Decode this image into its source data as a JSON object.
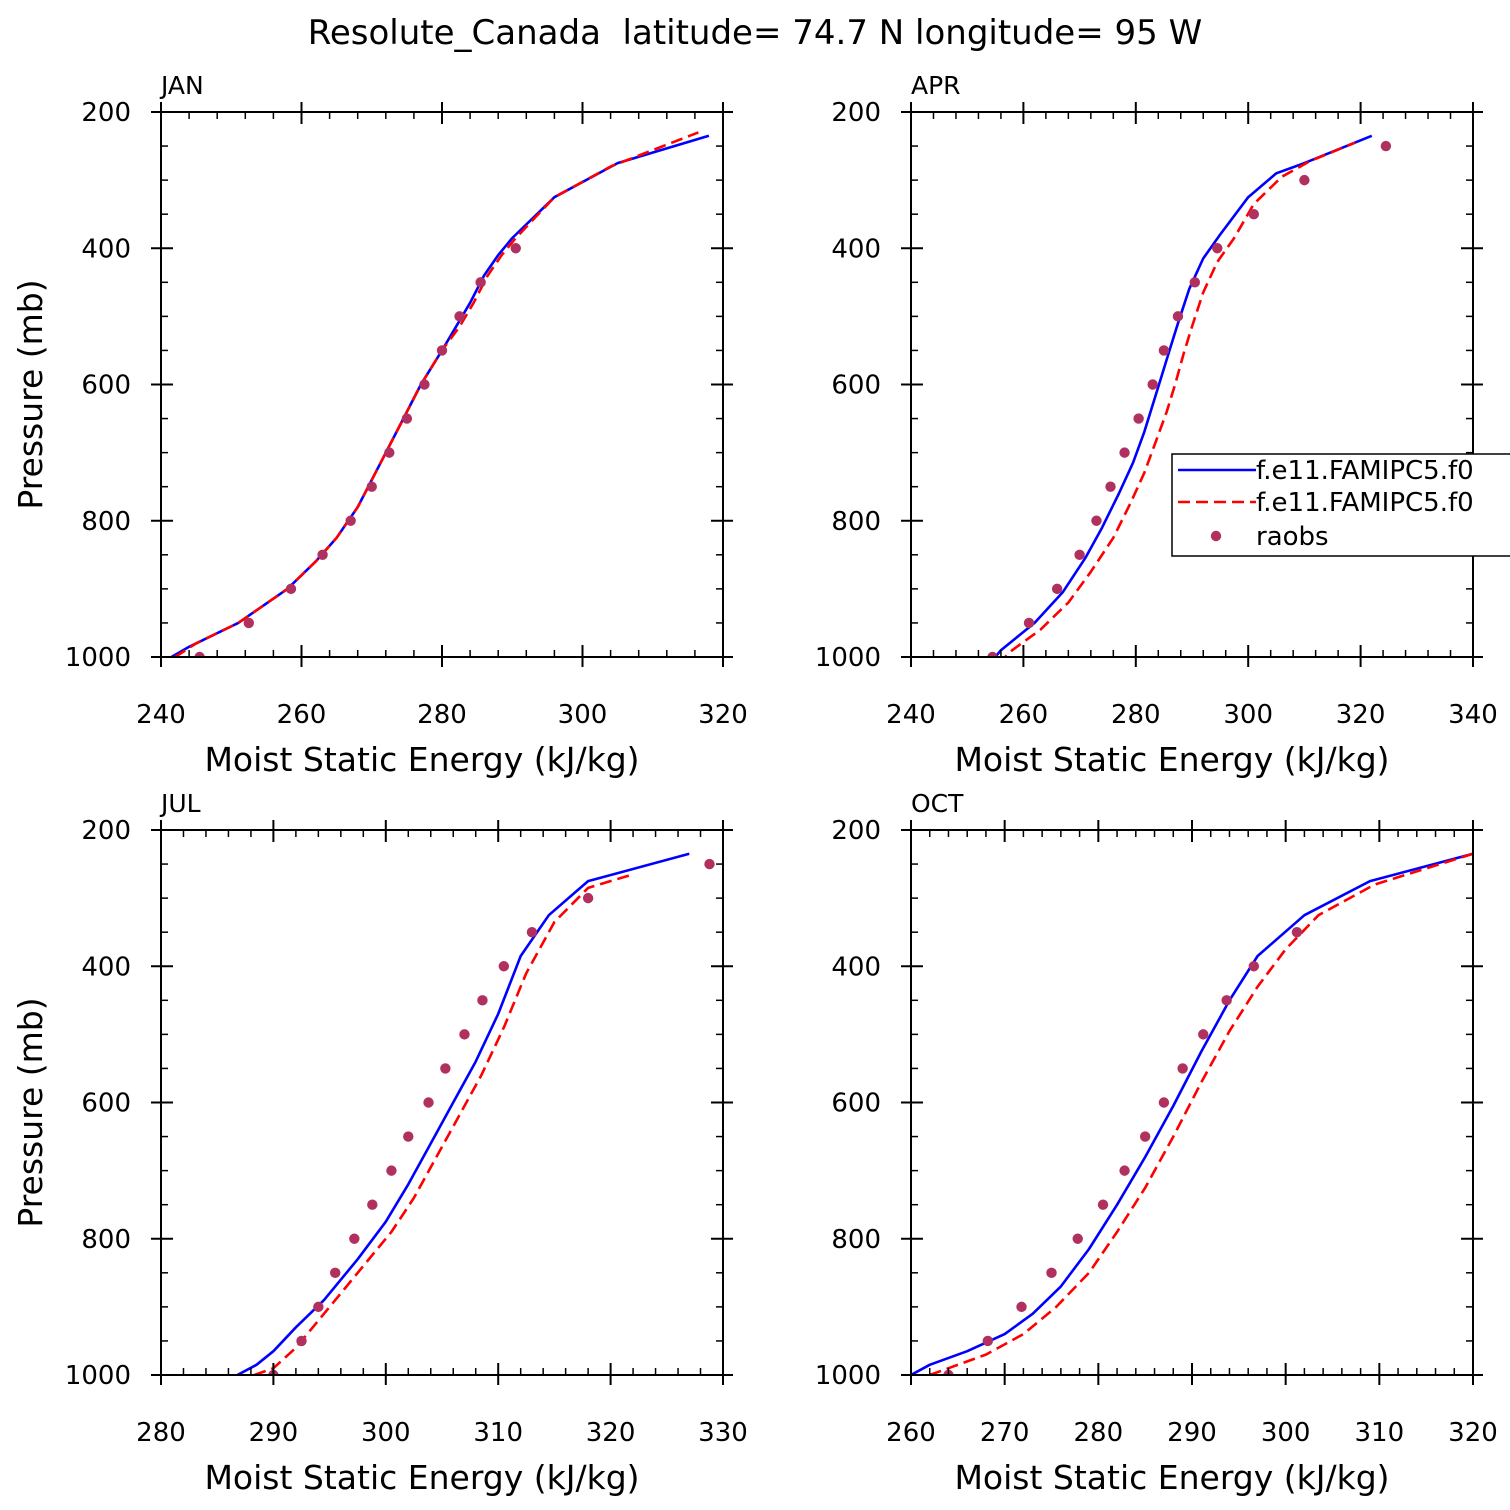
{
  "title": "Resolute_Canada  latitude= 74.7 N longitude= 95 W",
  "colors": {
    "model1": "#0000ff",
    "model2": "#ff0000",
    "obs": "#b03060"
  },
  "legend": {
    "entries": [
      "f.e11.FAMIPC5.f0",
      "f.e11.FAMIPC5.f0",
      "raobs"
    ]
  },
  "chart_data": [
    {
      "type": "line",
      "panel": "JAN",
      "title": "JAN",
      "xlabel": "Moist Static Energy (kJ/kg)",
      "ylabel": "Pressure (mb)",
      "xlim": [
        240,
        320
      ],
      "ylim": [
        200,
        1000
      ],
      "xticks": [
        "240",
        "260",
        "280",
        "300",
        "320"
      ],
      "yticks": [
        "200",
        "400",
        "600",
        "800",
        "1000"
      ],
      "series": [
        {
          "name": "f.e11.FAMIPC5.f0",
          "style": "solid",
          "points": [
            [
              241.5,
              1000
            ],
            [
              244,
              985
            ],
            [
              251,
              950
            ],
            [
              258,
              900
            ],
            [
              262,
              860
            ],
            [
              265,
              825
            ],
            [
              268,
              780
            ],
            [
              271,
              720
            ],
            [
              274,
              660
            ],
            [
              277,
              600
            ],
            [
              280,
              550
            ],
            [
              282,
              515
            ],
            [
              284,
              480
            ],
            [
              286,
              440
            ],
            [
              288,
              410
            ],
            [
              290,
              385
            ],
            [
              296,
              325
            ],
            [
              305,
              275
            ],
            [
              318,
              235
            ]
          ]
        },
        {
          "name": "f.e11.FAMIPC5.f0",
          "style": "dashed",
          "points": [
            [
              242,
              1000
            ],
            [
              245,
              980
            ],
            [
              251,
              950
            ],
            [
              258,
              900
            ],
            [
              262,
              860
            ],
            [
              265,
              825
            ],
            [
              268,
              780
            ],
            [
              271,
              720
            ],
            [
              274,
              660
            ],
            [
              277,
              600
            ],
            [
              280,
              550
            ],
            [
              282.5,
              515
            ],
            [
              284.5,
              480
            ],
            [
              286.5,
              440
            ],
            [
              288.5,
              410
            ],
            [
              290.5,
              385
            ],
            [
              296,
              325
            ],
            [
              304,
              280
            ],
            [
              316.5,
              230
            ]
          ]
        },
        {
          "name": "raobs",
          "style": "dots",
          "points": [
            [
              245.5,
              1000
            ],
            [
              252.5,
              950
            ],
            [
              258.5,
              900
            ],
            [
              263,
              850
            ],
            [
              267,
              800
            ],
            [
              270,
              750
            ],
            [
              272.5,
              700
            ],
            [
              275,
              650
            ],
            [
              277.5,
              600
            ],
            [
              280,
              550
            ],
            [
              282.5,
              500
            ],
            [
              285.5,
              450
            ],
            [
              290.5,
              400
            ]
          ]
        }
      ]
    },
    {
      "type": "line",
      "panel": "APR",
      "title": "APR",
      "xlabel": "Moist Static Energy (kJ/kg)",
      "ylabel": "",
      "xlim": [
        240,
        340
      ],
      "ylim": [
        200,
        1000
      ],
      "xticks": [
        "240",
        "260",
        "280",
        "300",
        "320",
        "340"
      ],
      "yticks": [
        "200",
        "400",
        "600",
        "800",
        "1000"
      ],
      "legend_location": "right",
      "series": [
        {
          "name": "f.e11.FAMIPC5.f0",
          "style": "solid",
          "points": [
            [
              254.5,
              1005
            ],
            [
              256,
              990
            ],
            [
              262,
              950
            ],
            [
              267,
              905
            ],
            [
              271,
              855
            ],
            [
              274,
              810
            ],
            [
              277,
              760
            ],
            [
              279.5,
              715
            ],
            [
              281.5,
              670
            ],
            [
              283,
              630
            ],
            [
              284.5,
              590
            ],
            [
              286,
              550
            ],
            [
              287.5,
              510
            ],
            [
              289.5,
              460
            ],
            [
              292,
              415
            ],
            [
              295,
              380
            ],
            [
              300,
              325
            ],
            [
              305,
              290
            ],
            [
              310,
              275
            ],
            [
              322,
              235
            ]
          ]
        },
        {
          "name": "f.e11.FAMIPC5.f0",
          "style": "dashed",
          "points": [
            [
              255.5,
              1010
            ],
            [
              258,
              990
            ],
            [
              263,
              960
            ],
            [
              268,
              920
            ],
            [
              272,
              875
            ],
            [
              276,
              825
            ],
            [
              279,
              775
            ],
            [
              281.5,
              730
            ],
            [
              283.5,
              685
            ],
            [
              285.5,
              640
            ],
            [
              287,
              600
            ],
            [
              288.5,
              555
            ],
            [
              290,
              515
            ],
            [
              292,
              465
            ],
            [
              294.5,
              420
            ],
            [
              297.5,
              385
            ],
            [
              301,
              335
            ],
            [
              306,
              295
            ],
            [
              311,
              272
            ],
            [
              319,
              245
            ]
          ]
        },
        {
          "name": "raobs",
          "style": "dots",
          "points": [
            [
              254.5,
              1000
            ],
            [
              261,
              950
            ],
            [
              266,
              900
            ],
            [
              270,
              850
            ],
            [
              273,
              800
            ],
            [
              275.5,
              750
            ],
            [
              278,
              700
            ],
            [
              280.5,
              650
            ],
            [
              283,
              600
            ],
            [
              285,
              550
            ],
            [
              287.5,
              500
            ],
            [
              290.5,
              450
            ],
            [
              294.5,
              400
            ],
            [
              301,
              350
            ],
            [
              310,
              300
            ],
            [
              324.5,
              250
            ]
          ]
        }
      ]
    },
    {
      "type": "line",
      "panel": "JUL",
      "title": "JUL",
      "xlabel": "Moist Static Energy (kJ/kg)",
      "ylabel": "Pressure (mb)",
      "xlim": [
        280,
        330
      ],
      "ylim": [
        200,
        1000
      ],
      "xticks": [
        "280",
        "290",
        "300",
        "310",
        "320",
        "330"
      ],
      "yticks": [
        "200",
        "400",
        "600",
        "800",
        "1000"
      ],
      "series": [
        {
          "name": "f.e11.FAMIPC5.f0",
          "style": "solid",
          "points": [
            [
              286.8,
              1000
            ],
            [
              288.5,
              985
            ],
            [
              290,
              965
            ],
            [
              292,
              930
            ],
            [
              294.5,
              890
            ],
            [
              297.5,
              830
            ],
            [
              300,
              775
            ],
            [
              302,
              720
            ],
            [
              304,
              660
            ],
            [
              306,
              600
            ],
            [
              308,
              540
            ],
            [
              310,
              470
            ],
            [
              312,
              385
            ],
            [
              314.5,
              325
            ],
            [
              318,
              275
            ],
            [
              327,
              235
            ]
          ]
        },
        {
          "name": "f.e11.FAMIPC5.f0",
          "style": "dashed",
          "points": [
            [
              288.3,
              1000
            ],
            [
              290,
              990
            ],
            [
              292,
              960
            ],
            [
              294.5,
              910
            ],
            [
              297.5,
              850
            ],
            [
              300.5,
              790
            ],
            [
              302.5,
              740
            ],
            [
              304.5,
              680
            ],
            [
              306.5,
              620
            ],
            [
              308.5,
              560
            ],
            [
              310.5,
              490
            ],
            [
              312.5,
              410
            ],
            [
              315,
              335
            ],
            [
              318,
              285
            ],
            [
              322,
              265
            ]
          ]
        },
        {
          "name": "raobs",
          "style": "dots",
          "points": [
            [
              290,
              1000
            ],
            [
              292.5,
              950
            ],
            [
              294,
              900
            ],
            [
              295.5,
              850
            ],
            [
              297.2,
              800
            ],
            [
              298.8,
              750
            ],
            [
              300.5,
              700
            ],
            [
              302,
              650
            ],
            [
              303.8,
              600
            ],
            [
              305.3,
              550
            ],
            [
              307,
              500
            ],
            [
              308.6,
              450
            ],
            [
              310.5,
              400
            ],
            [
              313,
              350
            ],
            [
              318,
              300
            ],
            [
              328.8,
              250
            ]
          ]
        }
      ]
    },
    {
      "type": "line",
      "panel": "OCT",
      "title": "OCT",
      "xlabel": "Moist Static Energy (kJ/kg)",
      "ylabel": "",
      "xlim": [
        260,
        320
      ],
      "ylim": [
        200,
        1000
      ],
      "xticks": [
        "260",
        "270",
        "280",
        "290",
        "300",
        "310",
        "320"
      ],
      "yticks": [
        "200",
        "400",
        "600",
        "800",
        "1000"
      ],
      "series": [
        {
          "name": "f.e11.FAMIPC5.f0",
          "style": "solid",
          "points": [
            [
              260,
              1000
            ],
            [
              262,
              985
            ],
            [
              266,
              965
            ],
            [
              270,
              940
            ],
            [
              273,
              910
            ],
            [
              276,
              870
            ],
            [
              279,
              815
            ],
            [
              282,
              750
            ],
            [
              285,
              680
            ],
            [
              288,
              605
            ],
            [
              291,
              525
            ],
            [
              294,
              450
            ],
            [
              297,
              385
            ],
            [
              302,
              325
            ],
            [
              309,
              275
            ],
            [
              320,
              235
            ]
          ]
        },
        {
          "name": "f.e11.FAMIPC5.f0",
          "style": "dashed",
          "points": [
            [
              262,
              1000
            ],
            [
              264,
              990
            ],
            [
              268,
              970
            ],
            [
              272,
              940
            ],
            [
              275.5,
              900
            ],
            [
              279,
              850
            ],
            [
              282,
              790
            ],
            [
              285,
              725
            ],
            [
              288,
              650
            ],
            [
              291,
              570
            ],
            [
              294,
              495
            ],
            [
              297,
              430
            ],
            [
              300,
              375
            ],
            [
              303.5,
              325
            ],
            [
              309.5,
              280
            ],
            [
              320,
              235
            ]
          ]
        },
        {
          "name": "raobs",
          "style": "dots",
          "points": [
            [
              264,
              1000
            ],
            [
              268.2,
              950
            ],
            [
              271.8,
              900
            ],
            [
              275,
              850
            ],
            [
              277.8,
              800
            ],
            [
              280.5,
              750
            ],
            [
              282.8,
              700
            ],
            [
              285,
              650
            ],
            [
              287,
              600
            ],
            [
              289,
              550
            ],
            [
              291.2,
              500
            ],
            [
              293.7,
              450
            ],
            [
              296.6,
              400
            ],
            [
              301.2,
              350
            ]
          ]
        }
      ]
    }
  ]
}
